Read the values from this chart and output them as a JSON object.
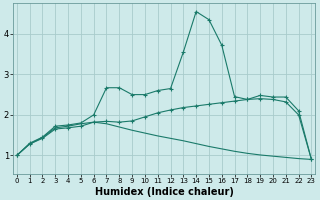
{
  "bg_color": "#ceeaea",
  "grid_color": "#a8cccc",
  "line_color": "#1a7a6a",
  "xlabel": "Humidex (Indice chaleur)",
  "xlabel_fontsize": 7,
  "yticks": [
    1,
    2,
    3,
    4
  ],
  "xticks": [
    0,
    1,
    2,
    3,
    4,
    5,
    6,
    7,
    8,
    9,
    10,
    11,
    12,
    13,
    14,
    15,
    16,
    17,
    18,
    19,
    20,
    21,
    22,
    23
  ],
  "xlim": [
    -0.3,
    23.3
  ],
  "ylim": [
    0.55,
    4.75
  ],
  "series1_x": [
    0,
    1,
    2,
    3,
    4,
    5,
    6,
    7,
    8,
    9,
    10,
    11,
    12,
    13,
    14,
    15,
    16,
    17,
    18,
    19,
    20,
    21,
    22,
    23
  ],
  "series1_y": [
    1.0,
    1.3,
    1.45,
    1.72,
    1.75,
    1.8,
    2.0,
    2.67,
    2.67,
    2.5,
    2.5,
    2.6,
    2.65,
    3.55,
    4.55,
    4.35,
    3.72,
    2.45,
    2.38,
    2.48,
    2.44,
    2.44,
    2.1,
    0.9
  ],
  "series2_x": [
    0,
    1,
    2,
    3,
    4,
    5,
    6,
    7,
    8,
    9,
    10,
    11,
    12,
    13,
    14,
    15,
    16,
    17,
    18,
    19,
    20,
    21,
    22,
    23
  ],
  "series2_y": [
    1.0,
    1.28,
    1.42,
    1.65,
    1.68,
    1.72,
    1.82,
    1.84,
    1.82,
    1.85,
    1.95,
    2.05,
    2.12,
    2.18,
    2.22,
    2.26,
    2.3,
    2.34,
    2.38,
    2.4,
    2.38,
    2.32,
    2.0,
    0.9
  ],
  "series3_x": [
    0,
    1,
    2,
    3,
    4,
    5,
    6,
    7,
    8,
    9,
    10,
    11,
    12,
    13,
    14,
    15,
    16,
    17,
    18,
    19,
    20,
    21,
    22,
    23
  ],
  "series3_y": [
    1.0,
    1.28,
    1.44,
    1.68,
    1.72,
    1.78,
    1.82,
    1.78,
    1.7,
    1.62,
    1.55,
    1.48,
    1.42,
    1.36,
    1.29,
    1.22,
    1.16,
    1.1,
    1.05,
    1.01,
    0.98,
    0.95,
    0.92,
    0.9
  ],
  "tick_fontsize": 5,
  "ytick_fontsize": 6
}
